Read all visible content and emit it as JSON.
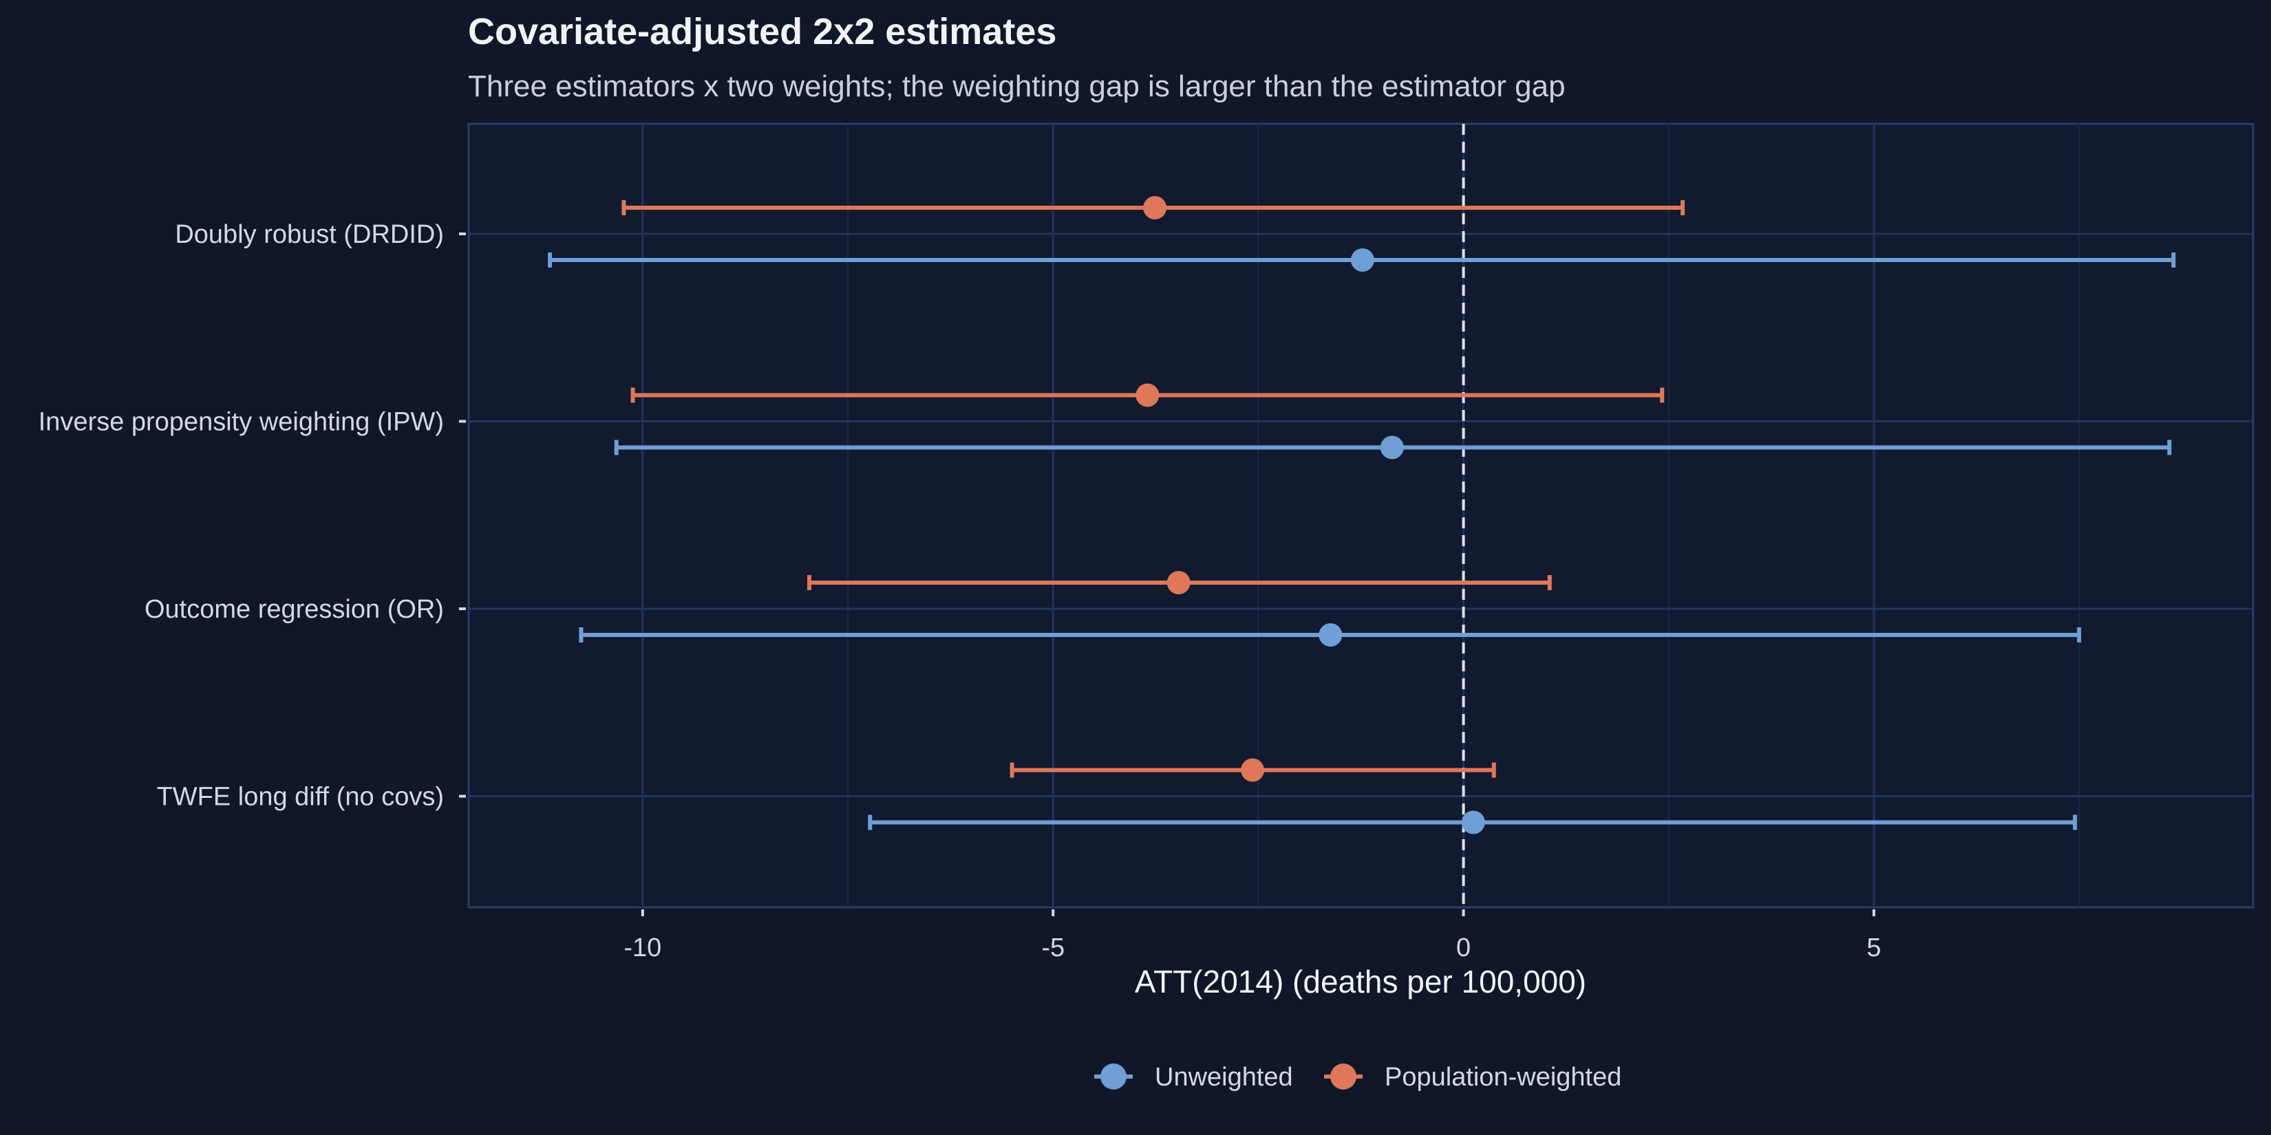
{
  "chart_data": {
    "type": "forest",
    "title": "Covariate-adjusted 2x2 estimates",
    "subtitle": "Three estimators x two weights; the weighting gap is larger than the estimator gap",
    "xlabel": "ATT(2014) (deaths per 100,000)",
    "ylabel": "",
    "xlim": [
      -12.12,
      9.62
    ],
    "xticks": [
      -10,
      -5,
      0,
      5
    ],
    "xtick_labels": [
      "-10",
      "-5",
      "0",
      "5"
    ],
    "reference_line": 0,
    "grid": true,
    "legend_position": "bottom",
    "categories": [
      "Doubly robust (DRDID)",
      "Inverse propensity weighting (IPW)",
      "Outcome regression (OR)",
      "TWFE long diff (no covs)"
    ],
    "series": [
      {
        "name": "Unweighted",
        "color": "#6f9fd6",
        "estimate": [
          -1.23,
          -0.87,
          -1.62,
          0.12
        ],
        "ci_low": [
          -11.13,
          -10.32,
          -10.75,
          -7.23
        ],
        "ci_high": [
          8.65,
          8.6,
          7.5,
          7.45
        ]
      },
      {
        "name": "Population-weighted",
        "color": "#de7858",
        "estimate": [
          -3.76,
          -3.85,
          -3.47,
          -2.57
        ],
        "ci_low": [
          -10.23,
          -10.12,
          -7.97,
          -5.5
        ],
        "ci_high": [
          2.67,
          2.42,
          1.05,
          0.37
        ]
      }
    ]
  }
}
